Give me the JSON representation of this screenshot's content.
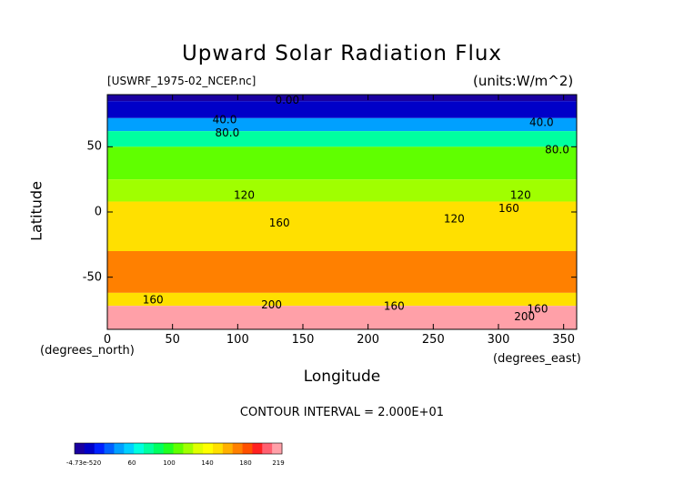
{
  "chart_data": {
    "type": "heatmap",
    "title": "Upward Solar Radiation Flux",
    "file_label": "[USWRF_1975-02_NCEP.nc]",
    "units_label": "(units:W/m^2)",
    "xlabel": "Longitude",
    "ylabel": "Latitude",
    "x_units_label": "(degrees_north)",
    "x_units_label_right": "(degrees_east)",
    "xlim": [
      0,
      360
    ],
    "ylim": [
      -90,
      90
    ],
    "x_ticks": [
      "0",
      "50",
      "100",
      "150",
      "200",
      "250",
      "300",
      "350"
    ],
    "x_tick_values": [
      0,
      50,
      100,
      150,
      200,
      250,
      300,
      350
    ],
    "y_ticks": [
      "50",
      "0",
      "-50"
    ],
    "y_tick_values": [
      50,
      0,
      -50
    ],
    "contour_interval": "CONTOUR INTERVAL = 2.000E+01",
    "contour_labels": [
      {
        "text": "0.00",
        "lon": 138,
        "lat": 83
      },
      {
        "text": "40.0",
        "lon": 90,
        "lat": 68
      },
      {
        "text": "80.0",
        "lon": 92,
        "lat": 58
      },
      {
        "text": "40.0",
        "lon": 333,
        "lat": 66
      },
      {
        "text": "80.0",
        "lon": 345,
        "lat": 45
      },
      {
        "text": "120",
        "lon": 105,
        "lat": 10
      },
      {
        "text": "160",
        "lon": 132,
        "lat": -11
      },
      {
        "text": "120",
        "lon": 266,
        "lat": -8
      },
      {
        "text": "120",
        "lon": 317,
        "lat": 10
      },
      {
        "text": "160",
        "lon": 308,
        "lat": 0
      },
      {
        "text": "160",
        "lon": 35,
        "lat": -70
      },
      {
        "text": "200",
        "lon": 126,
        "lat": -74
      },
      {
        "text": "160",
        "lon": 220,
        "lat": -75
      },
      {
        "text": "160",
        "lon": 330,
        "lat": -77
      },
      {
        "text": "200",
        "lon": 320,
        "lat": -83
      }
    ],
    "colorbar": {
      "ticks": [
        "-4.73e-520",
        "60",
        "100",
        "140",
        "180",
        "219"
      ],
      "colors": [
        "#1a00a0",
        "#0000c8",
        "#0020ff",
        "#0060ff",
        "#00a0ff",
        "#00d0ff",
        "#00ffe0",
        "#00ffa0",
        "#00ff60",
        "#20ff20",
        "#60ff00",
        "#a0ff00",
        "#e0ff00",
        "#ffff00",
        "#ffe000",
        "#ffb000",
        "#ff8000",
        "#ff5000",
        "#ff2020",
        "#ff6070",
        "#ffa0a8"
      ]
    },
    "latitude_bands": [
      {
        "lat_max": 90,
        "lat_min": 85,
        "value": 0
      },
      {
        "lat_max": 85,
        "lat_min": 72,
        "value": 20
      },
      {
        "lat_max": 72,
        "lat_min": 62,
        "value": 50
      },
      {
        "lat_max": 62,
        "lat_min": 50,
        "value": 80
      },
      {
        "lat_max": 50,
        "lat_min": 25,
        "value": 110
      },
      {
        "lat_max": 25,
        "lat_min": 8,
        "value": 125
      },
      {
        "lat_max": 8,
        "lat_min": -30,
        "value": 150
      },
      {
        "lat_max": -30,
        "lat_min": -62,
        "value": 170
      },
      {
        "lat_max": -62,
        "lat_min": -72,
        "value": 150
      },
      {
        "lat_max": -72,
        "lat_min": -90,
        "value": 210
      }
    ]
  }
}
